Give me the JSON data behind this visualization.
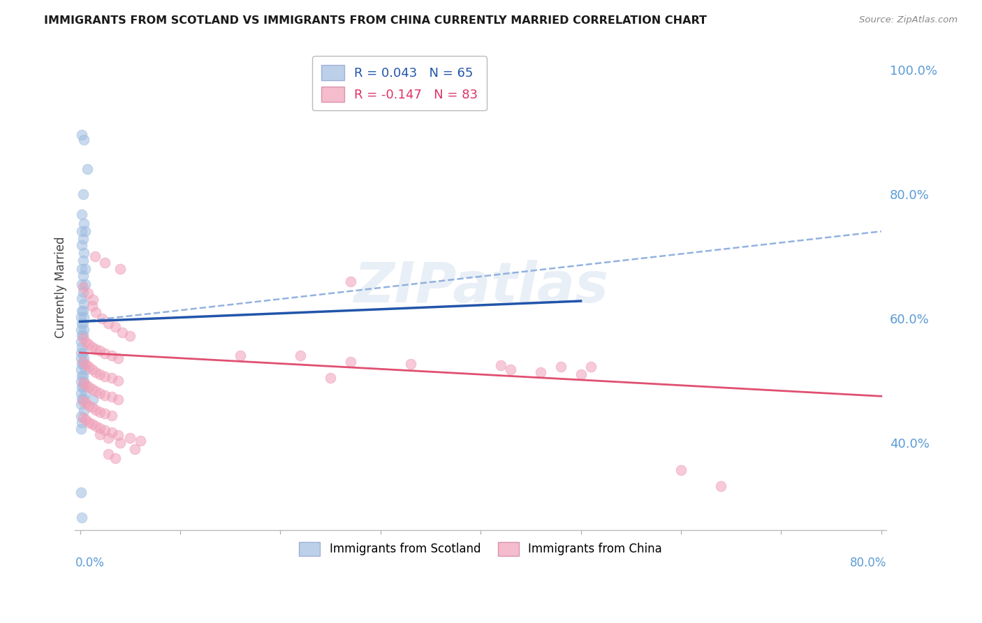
{
  "title": "IMMIGRANTS FROM SCOTLAND VS IMMIGRANTS FROM CHINA CURRENTLY MARRIED CORRELATION CHART",
  "source": "Source: ZipAtlas.com",
  "ylabel": "Currently Married",
  "legend_labels_bottom": [
    "Immigrants from Scotland",
    "Immigrants from China"
  ],
  "scotland_color": "#a0bde0",
  "china_color": "#f0a0b8",
  "xlim": [
    0.0,
    0.8
  ],
  "ylim": [
    0.26,
    1.04
  ],
  "watermark": "ZIPatlas",
  "background_color": "#ffffff",
  "grid_color": "#cccccc",
  "right_axis_color": "#5b9bd5",
  "right_ytick_vals": [
    1.0,
    0.8,
    0.6,
    0.4
  ],
  "scotland_line": {
    "x0": 0.0,
    "y0": 0.595,
    "x1": 0.5,
    "y1": 0.628
  },
  "scotland_dashed_line": {
    "x0": 0.0,
    "y0": 0.595,
    "x1": 0.8,
    "y1": 0.74
  },
  "china_line": {
    "x0": 0.0,
    "y0": 0.545,
    "x1": 0.8,
    "y1": 0.475
  },
  "scotland_line_color": "#2255aa",
  "scotland_dashed_color": "#88aadd",
  "china_line_color": "#e05070",
  "legend_R_scot": "R = 0.043",
  "legend_N_scot": "N = 65",
  "legend_R_china": "R = -0.147",
  "legend_N_china": "N = 83",
  "scot_text_color": "#2255aa",
  "china_text_color": "#dd3366",
  "scotland_points": [
    [
      0.002,
      0.895
    ],
    [
      0.004,
      0.887
    ],
    [
      0.007,
      0.84
    ],
    [
      0.003,
      0.8
    ],
    [
      0.002,
      0.767
    ],
    [
      0.004,
      0.753
    ],
    [
      0.002,
      0.74
    ],
    [
      0.005,
      0.74
    ],
    [
      0.003,
      0.728
    ],
    [
      0.002,
      0.718
    ],
    [
      0.004,
      0.706
    ],
    [
      0.003,
      0.693
    ],
    [
      0.002,
      0.68
    ],
    [
      0.005,
      0.68
    ],
    [
      0.003,
      0.668
    ],
    [
      0.002,
      0.655
    ],
    [
      0.005,
      0.655
    ],
    [
      0.003,
      0.643
    ],
    [
      0.002,
      0.633
    ],
    [
      0.004,
      0.623
    ],
    [
      0.002,
      0.612
    ],
    [
      0.003,
      0.612
    ],
    [
      0.001,
      0.602
    ],
    [
      0.004,
      0.602
    ],
    [
      0.002,
      0.592
    ],
    [
      0.003,
      0.592
    ],
    [
      0.001,
      0.582
    ],
    [
      0.004,
      0.582
    ],
    [
      0.002,
      0.573
    ],
    [
      0.003,
      0.573
    ],
    [
      0.001,
      0.563
    ],
    [
      0.002,
      0.554
    ],
    [
      0.001,
      0.545
    ],
    [
      0.003,
      0.545
    ],
    [
      0.001,
      0.536
    ],
    [
      0.004,
      0.536
    ],
    [
      0.002,
      0.527
    ],
    [
      0.003,
      0.527
    ],
    [
      0.001,
      0.518
    ],
    [
      0.005,
      0.518
    ],
    [
      0.002,
      0.508
    ],
    [
      0.003,
      0.508
    ],
    [
      0.001,
      0.499
    ],
    [
      0.004,
      0.499
    ],
    [
      0.002,
      0.49
    ],
    [
      0.003,
      0.49
    ],
    [
      0.001,
      0.48
    ],
    [
      0.005,
      0.48
    ],
    [
      0.002,
      0.471
    ],
    [
      0.003,
      0.471
    ],
    [
      0.001,
      0.462
    ],
    [
      0.004,
      0.452
    ],
    [
      0.001,
      0.443
    ],
    [
      0.002,
      0.433
    ],
    [
      0.001,
      0.423
    ],
    [
      0.013,
      0.47
    ],
    [
      0.001,
      0.32
    ],
    [
      0.002,
      0.28
    ]
  ],
  "china_points": [
    [
      0.015,
      0.7
    ],
    [
      0.025,
      0.69
    ],
    [
      0.04,
      0.68
    ],
    [
      0.27,
      0.66
    ],
    [
      0.003,
      0.65
    ],
    [
      0.008,
      0.64
    ],
    [
      0.013,
      0.63
    ],
    [
      0.012,
      0.62
    ],
    [
      0.016,
      0.61
    ],
    [
      0.022,
      0.6
    ],
    [
      0.028,
      0.592
    ],
    [
      0.035,
      0.586
    ],
    [
      0.042,
      0.578
    ],
    [
      0.05,
      0.572
    ],
    [
      0.003,
      0.568
    ],
    [
      0.006,
      0.562
    ],
    [
      0.009,
      0.558
    ],
    [
      0.012,
      0.554
    ],
    [
      0.016,
      0.55
    ],
    [
      0.02,
      0.548
    ],
    [
      0.025,
      0.544
    ],
    [
      0.032,
      0.54
    ],
    [
      0.038,
      0.536
    ],
    [
      0.003,
      0.53
    ],
    [
      0.006,
      0.526
    ],
    [
      0.009,
      0.522
    ],
    [
      0.012,
      0.518
    ],
    [
      0.016,
      0.514
    ],
    [
      0.02,
      0.51
    ],
    [
      0.025,
      0.507
    ],
    [
      0.032,
      0.504
    ],
    [
      0.038,
      0.5
    ],
    [
      0.003,
      0.497
    ],
    [
      0.006,
      0.493
    ],
    [
      0.009,
      0.49
    ],
    [
      0.012,
      0.487
    ],
    [
      0.016,
      0.483
    ],
    [
      0.02,
      0.48
    ],
    [
      0.025,
      0.477
    ],
    [
      0.032,
      0.474
    ],
    [
      0.038,
      0.47
    ],
    [
      0.003,
      0.467
    ],
    [
      0.006,
      0.464
    ],
    [
      0.009,
      0.46
    ],
    [
      0.012,
      0.457
    ],
    [
      0.016,
      0.453
    ],
    [
      0.02,
      0.45
    ],
    [
      0.025,
      0.447
    ],
    [
      0.032,
      0.444
    ],
    [
      0.003,
      0.44
    ],
    [
      0.006,
      0.437
    ],
    [
      0.009,
      0.433
    ],
    [
      0.012,
      0.43
    ],
    [
      0.016,
      0.427
    ],
    [
      0.02,
      0.424
    ],
    [
      0.025,
      0.42
    ],
    [
      0.032,
      0.417
    ],
    [
      0.038,
      0.413
    ],
    [
      0.05,
      0.408
    ],
    [
      0.06,
      0.403
    ],
    [
      0.02,
      0.414
    ],
    [
      0.028,
      0.408
    ],
    [
      0.04,
      0.4
    ],
    [
      0.055,
      0.39
    ],
    [
      0.028,
      0.382
    ],
    [
      0.035,
      0.375
    ],
    [
      0.6,
      0.356
    ],
    [
      0.64,
      0.33
    ],
    [
      0.16,
      0.54
    ],
    [
      0.22,
      0.54
    ],
    [
      0.27,
      0.53
    ],
    [
      0.33,
      0.527
    ],
    [
      0.42,
      0.525
    ],
    [
      0.48,
      0.523
    ],
    [
      0.51,
      0.522
    ],
    [
      0.43,
      0.518
    ],
    [
      0.46,
      0.514
    ],
    [
      0.5,
      0.51
    ],
    [
      0.25,
      0.505
    ]
  ]
}
